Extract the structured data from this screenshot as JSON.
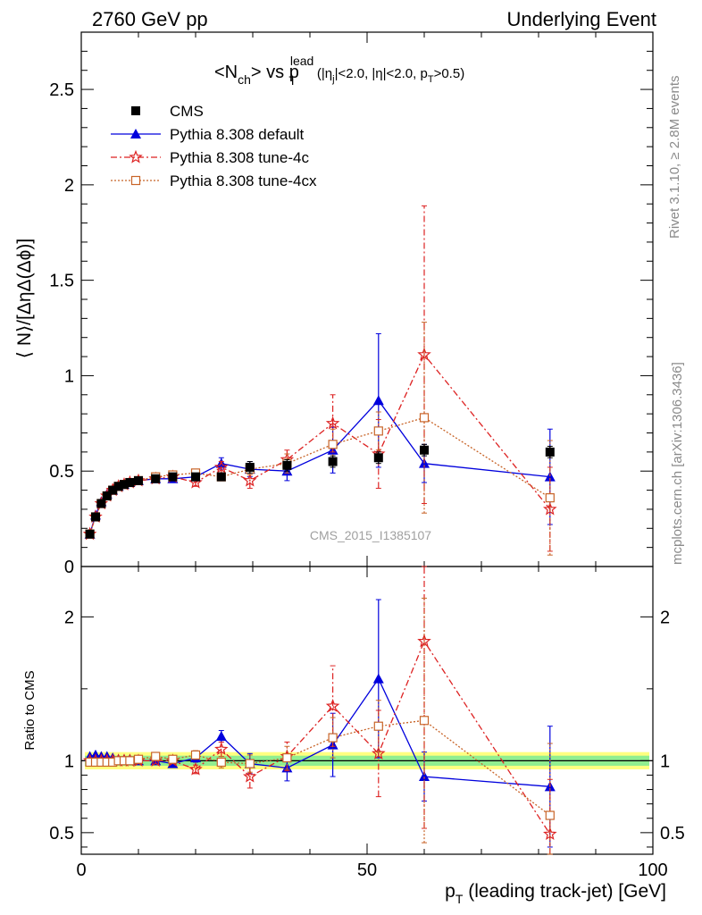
{
  "header": {
    "left": "2760 GeV pp",
    "right": "Underlying Event"
  },
  "side_text": {
    "rivet": "Rivet 3.1.10, ≥ 2.8M events",
    "mcplots": "mcplots.cern.ch [arXiv:1306.3436]"
  },
  "watermark": "CMS_2015_I1385107",
  "title": {
    "main": "<N",
    "main_sub": "ch",
    "mid": "> vs p",
    "mid_sub": "T",
    "mid_sup": "lead",
    "cuts": "(|η",
    "cuts_sub": "j",
    "cuts_rest": "|<2.0, |η|<2.0, p",
    "cuts_sub2": "T",
    "cuts_end": ">0.5)"
  },
  "axes": {
    "ylabel_top": "⟨ N⟩/[ΔηΔ(Δϕ)]",
    "ylabel_bottom": "Ratio to CMS",
    "xlabel_p": "p",
    "xlabel_sub": "T",
    "xlabel_rest": " (leading track-jet) [GeV]"
  },
  "colors": {
    "cms": "#000000",
    "default": "#0000dd",
    "tune4c": "#dd2222",
    "tune4cx": "#c86428",
    "band_inner": "#90ee90",
    "band_outer": "#ffff80"
  },
  "chart_data": [
    {
      "type": "scatter",
      "panel": "main",
      "xlim": [
        0,
        100
      ],
      "ylim": [
        0,
        2.8
      ],
      "x_ticks": [
        0,
        50,
        100
      ],
      "y_ticks": [
        0,
        0.5,
        1,
        1.5,
        2,
        2.5
      ],
      "y_tick_labels": [
        "0",
        "0.5",
        "1",
        "1.5",
        "2",
        "2.5"
      ],
      "legend_position": "top-left",
      "series": [
        {
          "name": "CMS",
          "style": "markers",
          "points": [
            {
              "x": 1.5,
              "y": 0.17,
              "err": 0.01
            },
            {
              "x": 2.5,
              "y": 0.26,
              "err": 0.01
            },
            {
              "x": 3.5,
              "y": 0.33,
              "err": 0.01
            },
            {
              "x": 4.5,
              "y": 0.37,
              "err": 0.01
            },
            {
              "x": 5.5,
              "y": 0.4,
              "err": 0.01
            },
            {
              "x": 6.5,
              "y": 0.42,
              "err": 0.01
            },
            {
              "x": 7.5,
              "y": 0.43,
              "err": 0.01
            },
            {
              "x": 8.5,
              "y": 0.44,
              "err": 0.01
            },
            {
              "x": 10,
              "y": 0.45,
              "err": 0.01
            },
            {
              "x": 13,
              "y": 0.46,
              "err": 0.01
            },
            {
              "x": 16,
              "y": 0.47,
              "err": 0.01
            },
            {
              "x": 20,
              "y": 0.47,
              "err": 0.01
            },
            {
              "x": 24.5,
              "y": 0.47,
              "err": 0.02
            },
            {
              "x": 29.5,
              "y": 0.52,
              "err": 0.03
            },
            {
              "x": 36,
              "y": 0.53,
              "err": 0.03
            },
            {
              "x": 44,
              "y": 0.55,
              "err": 0.03
            },
            {
              "x": 52,
              "y": 0.57,
              "err": 0.03
            },
            {
              "x": 60,
              "y": 0.61,
              "err": 0.03
            },
            {
              "x": 82,
              "y": 0.6,
              "err": 0.03
            }
          ]
        },
        {
          "name": "Pythia 8.308 default",
          "style": "triangle-line",
          "points": [
            {
              "x": 1.5,
              "y": 0.17,
              "err": 0.01
            },
            {
              "x": 2.5,
              "y": 0.27,
              "err": 0.01
            },
            {
              "x": 3.5,
              "y": 0.34,
              "err": 0.01
            },
            {
              "x": 4.5,
              "y": 0.38,
              "err": 0.01
            },
            {
              "x": 5.5,
              "y": 0.4,
              "err": 0.01
            },
            {
              "x": 6.5,
              "y": 0.42,
              "err": 0.01
            },
            {
              "x": 7.5,
              "y": 0.43,
              "err": 0.01
            },
            {
              "x": 8.5,
              "y": 0.44,
              "err": 0.01
            },
            {
              "x": 10,
              "y": 0.45,
              "err": 0.01
            },
            {
              "x": 13,
              "y": 0.46,
              "err": 0.01
            },
            {
              "x": 16,
              "y": 0.46,
              "err": 0.01
            },
            {
              "x": 20,
              "y": 0.47,
              "err": 0.02
            },
            {
              "x": 24.5,
              "y": 0.54,
              "err": 0.03
            },
            {
              "x": 29.5,
              "y": 0.51,
              "err": 0.04
            },
            {
              "x": 36,
              "y": 0.5,
              "err": 0.05
            },
            {
              "x": 44,
              "y": 0.61,
              "err": 0.12
            },
            {
              "x": 52,
              "y": 0.87,
              "err": 0.35
            },
            {
              "x": 60,
              "y": 0.54,
              "err": 0.1
            },
            {
              "x": 82,
              "y": 0.47,
              "err": 0.25
            }
          ]
        },
        {
          "name": "Pythia 8.308 tune-4c",
          "style": "star-dashdot",
          "points": [
            {
              "x": 1.5,
              "y": 0.17,
              "err": 0.01
            },
            {
              "x": 2.5,
              "y": 0.26,
              "err": 0.01
            },
            {
              "x": 3.5,
              "y": 0.33,
              "err": 0.01
            },
            {
              "x": 4.5,
              "y": 0.37,
              "err": 0.01
            },
            {
              "x": 5.5,
              "y": 0.4,
              "err": 0.01
            },
            {
              "x": 6.5,
              "y": 0.42,
              "err": 0.01
            },
            {
              "x": 7.5,
              "y": 0.43,
              "err": 0.01
            },
            {
              "x": 8.5,
              "y": 0.44,
              "err": 0.01
            },
            {
              "x": 10,
              "y": 0.45,
              "err": 0.01
            },
            {
              "x": 13,
              "y": 0.46,
              "err": 0.01
            },
            {
              "x": 16,
              "y": 0.47,
              "err": 0.01
            },
            {
              "x": 20,
              "y": 0.44,
              "err": 0.02
            },
            {
              "x": 24.5,
              "y": 0.52,
              "err": 0.03
            },
            {
              "x": 29.5,
              "y": 0.45,
              "err": 0.04
            },
            {
              "x": 36,
              "y": 0.56,
              "err": 0.05
            },
            {
              "x": 44,
              "y": 0.75,
              "err": 0.15
            },
            {
              "x": 52,
              "y": 0.59,
              "err": 0.18
            },
            {
              "x": 60,
              "y": 1.11,
              "err": 0.78
            },
            {
              "x": 82,
              "y": 0.3,
              "err": 0.22
            }
          ]
        },
        {
          "name": "Pythia 8.308 tune-4cx",
          "style": "square-dotted",
          "points": [
            {
              "x": 1.5,
              "y": 0.17,
              "err": 0.01
            },
            {
              "x": 2.5,
              "y": 0.26,
              "err": 0.01
            },
            {
              "x": 3.5,
              "y": 0.33,
              "err": 0.01
            },
            {
              "x": 4.5,
              "y": 0.37,
              "err": 0.01
            },
            {
              "x": 5.5,
              "y": 0.4,
              "err": 0.01
            },
            {
              "x": 6.5,
              "y": 0.42,
              "err": 0.01
            },
            {
              "x": 7.5,
              "y": 0.43,
              "err": 0.01
            },
            {
              "x": 8.5,
              "y": 0.44,
              "err": 0.01
            },
            {
              "x": 10,
              "y": 0.45,
              "err": 0.01
            },
            {
              "x": 13,
              "y": 0.47,
              "err": 0.01
            },
            {
              "x": 16,
              "y": 0.48,
              "err": 0.01
            },
            {
              "x": 20,
              "y": 0.49,
              "err": 0.02
            },
            {
              "x": 24.5,
              "y": 0.47,
              "err": 0.02
            },
            {
              "x": 29.5,
              "y": 0.51,
              "err": 0.03
            },
            {
              "x": 36,
              "y": 0.54,
              "err": 0.05
            },
            {
              "x": 44,
              "y": 0.64,
              "err": 0.08
            },
            {
              "x": 52,
              "y": 0.71,
              "err": 0.1
            },
            {
              "x": 60,
              "y": 0.78,
              "err": 0.5
            },
            {
              "x": 82,
              "y": 0.36,
              "err": 0.3
            }
          ]
        }
      ]
    },
    {
      "type": "scatter",
      "panel": "ratio",
      "ylabel": "Ratio to CMS",
      "xlim": [
        0,
        100
      ],
      "ylim": [
        0.35,
        2.35
      ],
      "x_ticks": [
        0,
        50,
        100
      ],
      "x_tick_labels": [
        "0",
        "50",
        "100"
      ],
      "y_ticks": [
        0.5,
        1,
        2
      ],
      "y_tick_labels": [
        "0.5",
        "1",
        "2"
      ],
      "band_inner": 0.035,
      "band_outer": 0.06,
      "series": [
        {
          "name": "Pythia 8.308 default",
          "points": [
            {
              "x": 1.5,
              "y": 1.03,
              "err": 0.02
            },
            {
              "x": 2.5,
              "y": 1.04,
              "err": 0.02
            },
            {
              "x": 3.5,
              "y": 1.03,
              "err": 0.02
            },
            {
              "x": 4.5,
              "y": 1.03,
              "err": 0.02
            },
            {
              "x": 5.5,
              "y": 1.02,
              "err": 0.02
            },
            {
              "x": 6.5,
              "y": 1.01,
              "err": 0.02
            },
            {
              "x": 7.5,
              "y": 1.01,
              "err": 0.02
            },
            {
              "x": 8.5,
              "y": 1.01,
              "err": 0.02
            },
            {
              "x": 10,
              "y": 1.0,
              "err": 0.02
            },
            {
              "x": 13,
              "y": 1.0,
              "err": 0.02
            },
            {
              "x": 16,
              "y": 0.98,
              "err": 0.02
            },
            {
              "x": 20,
              "y": 1.02,
              "err": 0.03
            },
            {
              "x": 24.5,
              "y": 1.17,
              "err": 0.04
            },
            {
              "x": 29.5,
              "y": 0.98,
              "err": 0.07
            },
            {
              "x": 36,
              "y": 0.95,
              "err": 0.09
            },
            {
              "x": 44,
              "y": 1.11,
              "err": 0.22
            },
            {
              "x": 52,
              "y": 1.57,
              "err": 0.55
            },
            {
              "x": 60,
              "y": 0.89,
              "err": 0.17
            },
            {
              "x": 82,
              "y": 0.82,
              "err": 0.42
            }
          ]
        },
        {
          "name": "Pythia 8.308 tune-4c",
          "points": [
            {
              "x": 1.5,
              "y": 1.0,
              "err": 0.02
            },
            {
              "x": 2.5,
              "y": 1.0,
              "err": 0.02
            },
            {
              "x": 3.5,
              "y": 1.0,
              "err": 0.02
            },
            {
              "x": 4.5,
              "y": 1.0,
              "err": 0.02
            },
            {
              "x": 5.5,
              "y": 1.0,
              "err": 0.02
            },
            {
              "x": 6.5,
              "y": 1.0,
              "err": 0.02
            },
            {
              "x": 7.5,
              "y": 1.0,
              "err": 0.02
            },
            {
              "x": 8.5,
              "y": 1.0,
              "err": 0.02
            },
            {
              "x": 10,
              "y": 1.0,
              "err": 0.02
            },
            {
              "x": 13,
              "y": 1.0,
              "err": 0.02
            },
            {
              "x": 16,
              "y": 1.0,
              "err": 0.02
            },
            {
              "x": 20,
              "y": 0.94,
              "err": 0.03
            },
            {
              "x": 24.5,
              "y": 1.08,
              "err": 0.05
            },
            {
              "x": 29.5,
              "y": 0.89,
              "err": 0.08
            },
            {
              "x": 36,
              "y": 1.03,
              "err": 0.1
            },
            {
              "x": 44,
              "y": 1.38,
              "err": 0.28
            },
            {
              "x": 52,
              "y": 1.05,
              "err": 0.3
            },
            {
              "x": 60,
              "y": 1.83,
              "err": 1.3
            },
            {
              "x": 82,
              "y": 0.49,
              "err": 0.38
            }
          ]
        },
        {
          "name": "Pythia 8.308 tune-4cx",
          "points": [
            {
              "x": 1.5,
              "y": 0.99,
              "err": 0.02
            },
            {
              "x": 2.5,
              "y": 0.99,
              "err": 0.02
            },
            {
              "x": 3.5,
              "y": 0.99,
              "err": 0.02
            },
            {
              "x": 4.5,
              "y": 0.99,
              "err": 0.02
            },
            {
              "x": 5.5,
              "y": 0.99,
              "err": 0.02
            },
            {
              "x": 6.5,
              "y": 1.0,
              "err": 0.02
            },
            {
              "x": 7.5,
              "y": 1.0,
              "err": 0.02
            },
            {
              "x": 8.5,
              "y": 1.0,
              "err": 0.02
            },
            {
              "x": 10,
              "y": 1.01,
              "err": 0.02
            },
            {
              "x": 13,
              "y": 1.03,
              "err": 0.02
            },
            {
              "x": 16,
              "y": 1.01,
              "err": 0.02
            },
            {
              "x": 20,
              "y": 1.04,
              "err": 0.03
            },
            {
              "x": 24.5,
              "y": 0.99,
              "err": 0.04
            },
            {
              "x": 29.5,
              "y": 0.98,
              "err": 0.06
            },
            {
              "x": 36,
              "y": 1.02,
              "err": 0.08
            },
            {
              "x": 44,
              "y": 1.16,
              "err": 0.14
            },
            {
              "x": 52,
              "y": 1.24,
              "err": 0.18
            },
            {
              "x": 60,
              "y": 1.28,
              "err": 0.85
            },
            {
              "x": 82,
              "y": 0.62,
              "err": 0.5
            }
          ]
        }
      ]
    }
  ]
}
